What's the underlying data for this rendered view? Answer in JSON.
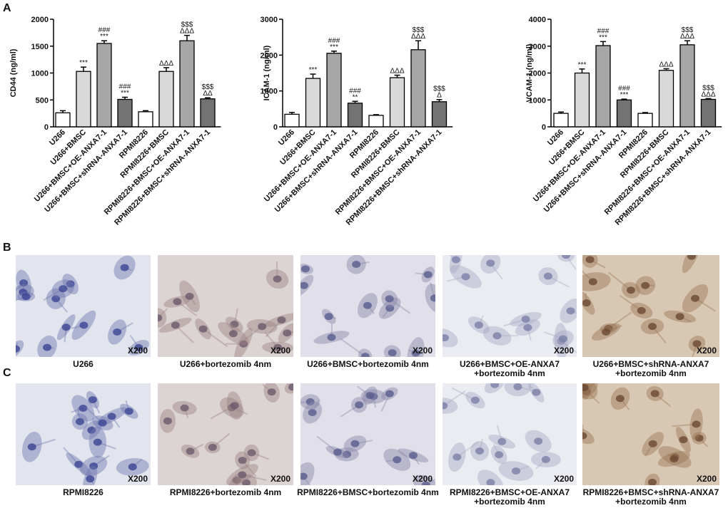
{
  "panel_labels": [
    "A",
    "B",
    "C"
  ],
  "chart_data": [
    {
      "type": "bar",
      "ylabel": "CD44 (ng/ml)",
      "categories": [
        "U266",
        "U266+BMSC",
        "U266+BMSC+OE-ANXA7-1",
        "U266+BMSC+shRNA-ANXA7-1",
        "RPMI8226",
        "RPMI8226+BMSC",
        "RPMI8226+BMSC+OE-ANXA7-1",
        "RPMI8226+BMSC+shRNA-ANXA7-1"
      ],
      "values": [
        260,
        1030,
        1550,
        510,
        280,
        1030,
        1600,
        520
      ],
      "errors": [
        40,
        80,
        50,
        40,
        20,
        70,
        100,
        20
      ],
      "annotations": [
        null,
        [
          "***"
        ],
        [
          "###",
          "***"
        ],
        [
          "###",
          "***"
        ],
        null,
        [
          "ΔΔΔ"
        ],
        [
          "$$$",
          "ΔΔΔ"
        ],
        [
          "$$$",
          "ΔΔ"
        ]
      ],
      "colors": [
        "#ffffff",
        "#d9d9d9",
        "#a6a6a6",
        "#737373",
        "#ffffff",
        "#d9d9d9",
        "#a6a6a6",
        "#737373"
      ],
      "ylim": [
        0,
        2000
      ],
      "yticks": [
        0,
        500,
        1000,
        1500,
        2000
      ]
    },
    {
      "type": "bar",
      "ylabel": "ICAM-1 (ng/ml)",
      "categories": [
        "U266",
        "U266+BMSC",
        "U266+BMSC+OE-ANXA7-1",
        "U266+BMSC+shRNA-ANXA7-1",
        "RPMI8226",
        "RPMI8226+BMSC",
        "RPMI8226+BMSC+OE-ANXA7-1",
        "RPMI8226+BMSC+shRNA-ANXA7-1"
      ],
      "values": [
        350,
        1350,
        2050,
        660,
        320,
        1370,
        2150,
        700
      ],
      "errors": [
        50,
        120,
        60,
        50,
        20,
        70,
        250,
        60
      ],
      "annotations": [
        null,
        [
          "***"
        ],
        [
          "###",
          "***"
        ],
        [
          "###",
          "**"
        ],
        null,
        [
          "ΔΔΔ"
        ],
        [
          "$$$",
          "ΔΔΔ"
        ],
        [
          "$$$",
          "Δ"
        ]
      ],
      "colors": [
        "#ffffff",
        "#d9d9d9",
        "#a6a6a6",
        "#737373",
        "#ffffff",
        "#d9d9d9",
        "#a6a6a6",
        "#737373"
      ],
      "ylim": [
        0,
        3000
      ],
      "yticks": [
        0,
        1000,
        2000,
        3000
      ]
    },
    {
      "type": "bar",
      "ylabel": "VCAM-1 (ng/ml)",
      "categories": [
        "U266",
        "U266+BMSC",
        "U266+BMSC+OE-ANXA7-1",
        "U266+BMSC+shRNA-ANXA7-1",
        "RPMI8226",
        "RPMI8226+BMSC",
        "RPMI8226+BMSC+OE-ANXA7-1",
        "RPMI8226+BMSC+shRNA-ANXA7-1"
      ],
      "values": [
        500,
        2000,
        3020,
        1000,
        500,
        2100,
        3050,
        1020
      ],
      "errors": [
        50,
        150,
        150,
        30,
        30,
        60,
        150,
        30
      ],
      "annotations": [
        null,
        [
          "***"
        ],
        [
          "###",
          "***"
        ],
        [
          "###",
          "***"
        ],
        null,
        [
          "ΔΔΔ"
        ],
        [
          "$$$",
          "ΔΔΔ"
        ],
        [
          "$$$",
          "ΔΔΔ"
        ]
      ],
      "colors": [
        "#ffffff",
        "#d9d9d9",
        "#a6a6a6",
        "#737373",
        "#ffffff",
        "#d9d9d9",
        "#a6a6a6",
        "#737373"
      ],
      "ylim": [
        0,
        4000
      ],
      "yticks": [
        0,
        1000,
        2000,
        3000,
        4000
      ]
    }
  ],
  "magnification": "X200",
  "micrograph_rows": [
    [
      {
        "caption": [
          "U266"
        ]
      },
      {
        "caption": [
          "U266+bortezomib 4nm"
        ]
      },
      {
        "caption": [
          "U266+BMSC+bortezomib 4nm"
        ]
      },
      {
        "caption": [
          "U266+BMSC+OE-ANXA7",
          "+bortezomib 4nm"
        ]
      },
      {
        "caption": [
          "U266+BMSC+shRNA-ANXA7",
          "+bortezomib 4nm"
        ]
      }
    ],
    [
      {
        "caption": [
          "RPMI8226"
        ]
      },
      {
        "caption": [
          "RPMI8226+bortezomib 4nm"
        ]
      },
      {
        "caption": [
          "RPMI8226+BMSC+bortezomib 4nm"
        ]
      },
      {
        "caption": [
          "RPMI8226+BMSC+OE-ANXA7",
          "+bortezomib 4nm"
        ]
      },
      {
        "caption": [
          "RPMI8226+BMSC+shRNA-ANXA7",
          "+bortezomib 4nm"
        ]
      }
    ]
  ]
}
